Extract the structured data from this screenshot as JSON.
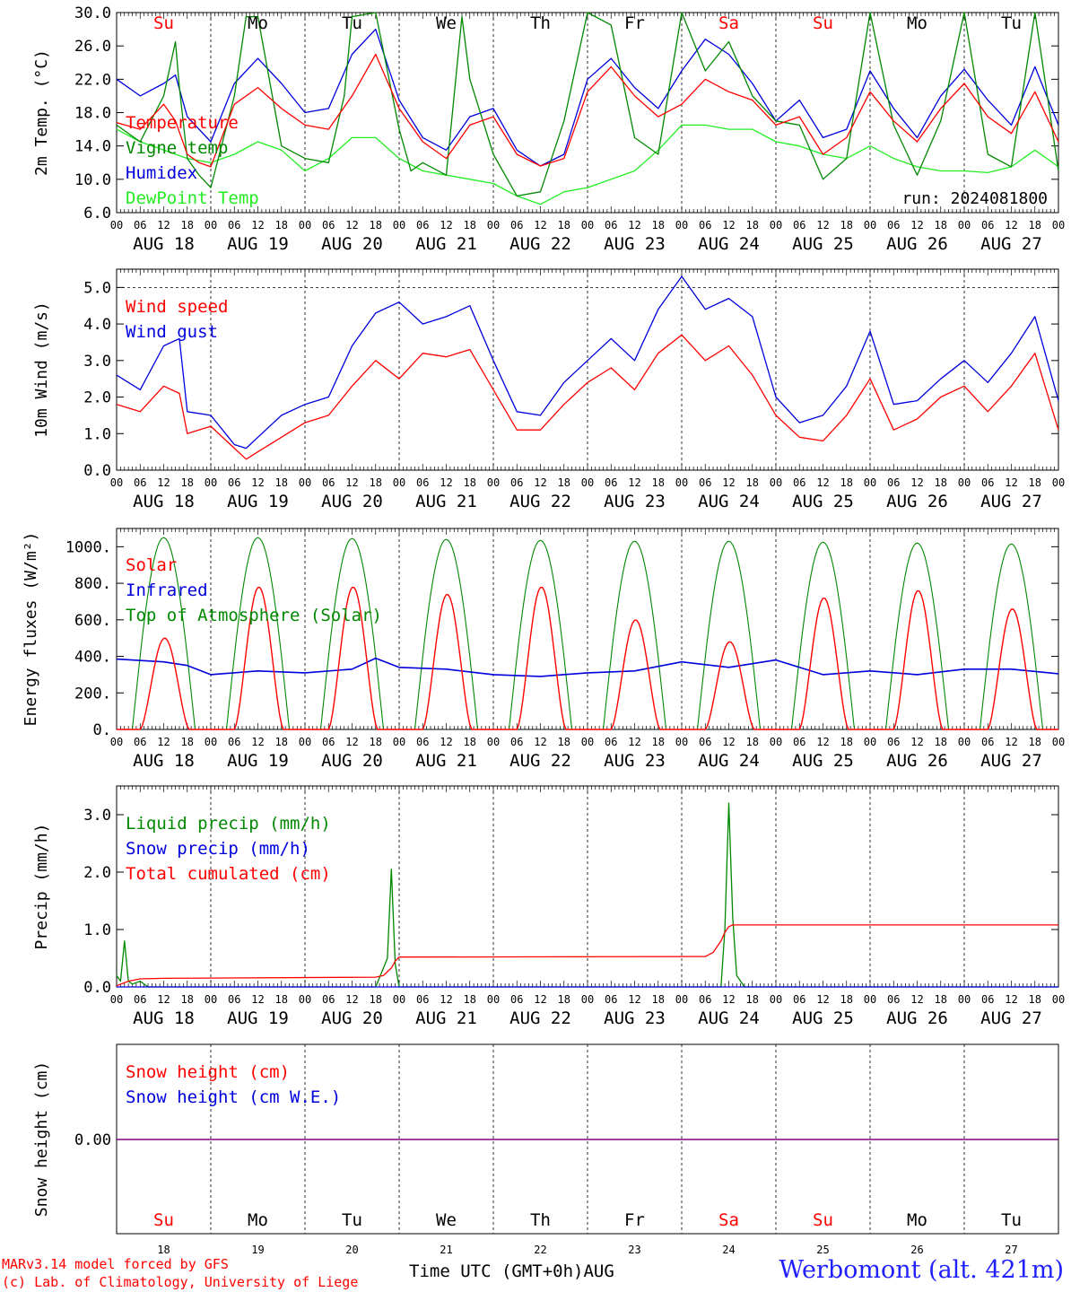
{
  "chart_data": [
    {
      "type": "line",
      "ylabel": "2m Temp. (°C)",
      "ylim": [
        6,
        30
      ],
      "yticks": [
        6,
        10,
        14,
        18,
        22,
        26,
        30
      ],
      "ytick_labels": [
        "6.0",
        "10.0",
        "14.0",
        "18.0",
        "22.0",
        "26.0",
        "30.0"
      ],
      "weekday_labels": [
        "Su",
        "Mo",
        "Tu",
        "We",
        "Th",
        "Fr",
        "Sa",
        "Su",
        "Mo",
        "Tu"
      ],
      "annotation": "run: 2024081800",
      "legend": "top-left",
      "series": [
        {
          "name": "Temperature",
          "color": "#ff0000",
          "x": [
            0,
            6,
            12,
            15,
            18,
            21,
            24,
            30,
            36,
            42,
            48,
            54,
            60,
            66,
            72,
            78,
            84,
            90,
            96,
            102,
            108,
            114,
            120,
            126,
            132,
            138,
            144,
            150,
            156,
            162,
            168,
            174,
            180,
            186,
            192,
            198,
            204,
            210,
            216,
            222,
            228,
            234,
            240
          ],
          "values": [
            16.8,
            16.0,
            19.0,
            17.0,
            13.0,
            12.0,
            11.5,
            19.0,
            21.0,
            18.5,
            16.5,
            16.0,
            20.0,
            25.0,
            18.5,
            14.5,
            12.5,
            16.5,
            17.5,
            13.0,
            11.6,
            12.5,
            20.5,
            23.5,
            20.0,
            17.5,
            19.0,
            22.0,
            20.5,
            19.5,
            16.5,
            17.5,
            13.0,
            15.0,
            20.5,
            17.0,
            14.5,
            18.5,
            21.5,
            17.5,
            15.5,
            20.5,
            14.5
          ]
        },
        {
          "name": "Vigne temp",
          "color": "#008800",
          "x": [
            0,
            6,
            12,
            15,
            16,
            18,
            21,
            24,
            30,
            33,
            36,
            42,
            48,
            54,
            58,
            60,
            66,
            72,
            75,
            78,
            84,
            88,
            90,
            96,
            102,
            108,
            114,
            120,
            126,
            132,
            138,
            144,
            150,
            156,
            162,
            168,
            174,
            180,
            186,
            192,
            198,
            204,
            210,
            216,
            222,
            228,
            234,
            240
          ],
          "values": [
            16.5,
            14.5,
            20.0,
            26.5,
            21.0,
            12.5,
            10.5,
            9.0,
            20.0,
            29.5,
            29.5,
            14.0,
            12.5,
            12.0,
            20.0,
            29.5,
            30.0,
            16.0,
            11.0,
            12.0,
            10.5,
            29.5,
            22.0,
            13.0,
            8.0,
            8.5,
            17.0,
            30.0,
            28.5,
            15.0,
            13.0,
            30.0,
            23.0,
            26.5,
            20.0,
            17.0,
            16.5,
            10.0,
            12.5,
            30.0,
            16.5,
            10.5,
            17.0,
            30.0,
            13.0,
            11.5,
            30.0,
            11.0
          ]
        },
        {
          "name": "Humidex",
          "color": "#0000dd",
          "x": [
            0,
            6,
            12,
            15,
            18,
            21,
            24,
            30,
            36,
            42,
            48,
            54,
            60,
            66,
            72,
            78,
            84,
            90,
            96,
            102,
            108,
            114,
            120,
            126,
            132,
            138,
            144,
            150,
            156,
            162,
            168,
            174,
            180,
            186,
            192,
            198,
            204,
            210,
            216,
            222,
            228,
            234,
            240
          ],
          "values": [
            22.0,
            20.0,
            21.5,
            22.5,
            17.5,
            16.0,
            14.5,
            21.5,
            24.5,
            21.5,
            18.0,
            18.5,
            25.0,
            28.0,
            19.5,
            15.0,
            13.5,
            17.5,
            18.5,
            13.5,
            11.6,
            13.0,
            22.0,
            24.5,
            21.0,
            18.5,
            23.0,
            26.8,
            25.0,
            21.5,
            17.0,
            19.5,
            15.0,
            16.0,
            23.0,
            18.5,
            15.0,
            20.0,
            23.2,
            19.5,
            16.5,
            23.5,
            16.5
          ]
        },
        {
          "name": "DewPoint Temp",
          "color": "#22ee22",
          "x": [
            0,
            6,
            12,
            18,
            24,
            30,
            36,
            42,
            48,
            54,
            60,
            66,
            72,
            78,
            84,
            90,
            96,
            102,
            108,
            114,
            120,
            126,
            132,
            138,
            144,
            150,
            156,
            162,
            168,
            174,
            180,
            186,
            192,
            198,
            204,
            210,
            216,
            222,
            228,
            234,
            240
          ],
          "values": [
            16.0,
            14.5,
            13.5,
            12.5,
            12.0,
            13.0,
            14.5,
            13.5,
            11.0,
            12.5,
            15.0,
            15.0,
            12.5,
            11.0,
            10.5,
            10.0,
            9.5,
            8.0,
            7.0,
            8.5,
            9.0,
            10.0,
            11.0,
            13.5,
            16.5,
            16.5,
            16.0,
            16.0,
            14.5,
            14.0,
            13.0,
            12.5,
            14.0,
            12.5,
            11.5,
            11.0,
            11.0,
            10.8,
            11.5,
            13.5,
            11.5
          ]
        }
      ]
    },
    {
      "type": "line",
      "ylabel": "10m Wind (m/s)",
      "ylim": [
        0,
        5.5
      ],
      "yticks": [
        0,
        1,
        2,
        3,
        4,
        5
      ],
      "ytick_labels": [
        "0.0",
        "1.0",
        "2.0",
        "3.0",
        "4.0",
        "5.0"
      ],
      "legend": "top-left",
      "series": [
        {
          "name": "Wind speed",
          "color": "#ff0000",
          "x": [
            0,
            6,
            12,
            16,
            18,
            24,
            30,
            33,
            36,
            42,
            48,
            54,
            60,
            66,
            72,
            78,
            84,
            90,
            96,
            102,
            108,
            114,
            120,
            126,
            132,
            138,
            144,
            150,
            156,
            162,
            168,
            174,
            180,
            186,
            192,
            198,
            204,
            210,
            216,
            222,
            228,
            234,
            240
          ],
          "values": [
            1.8,
            1.6,
            2.3,
            2.1,
            1.0,
            1.2,
            0.6,
            0.3,
            0.5,
            0.9,
            1.3,
            1.5,
            2.3,
            3.0,
            2.5,
            3.2,
            3.1,
            3.3,
            2.2,
            1.1,
            1.1,
            1.8,
            2.4,
            2.8,
            2.2,
            3.2,
            3.7,
            3.0,
            3.4,
            2.6,
            1.5,
            0.9,
            0.8,
            1.5,
            2.5,
            1.1,
            1.4,
            2.0,
            2.3,
            1.6,
            2.3,
            3.2,
            1.1
          ]
        },
        {
          "name": "Wind gust",
          "color": "#0000dd",
          "x": [
            0,
            6,
            12,
            16,
            18,
            24,
            30,
            33,
            36,
            42,
            48,
            54,
            60,
            66,
            72,
            78,
            84,
            90,
            96,
            102,
            108,
            114,
            120,
            126,
            132,
            138,
            144,
            150,
            156,
            162,
            168,
            174,
            180,
            186,
            192,
            198,
            204,
            210,
            216,
            222,
            228,
            234,
            240
          ],
          "values": [
            2.6,
            2.2,
            3.4,
            3.6,
            1.6,
            1.5,
            0.7,
            0.6,
            0.9,
            1.5,
            1.8,
            2.0,
            3.4,
            4.3,
            4.6,
            4.0,
            4.2,
            4.5,
            3.0,
            1.6,
            1.5,
            2.4,
            3.0,
            3.6,
            3.0,
            4.4,
            5.3,
            4.4,
            4.7,
            4.2,
            2.0,
            1.3,
            1.5,
            2.3,
            3.8,
            1.8,
            1.9,
            2.5,
            3.0,
            2.4,
            3.2,
            4.2,
            1.9
          ]
        }
      ]
    },
    {
      "type": "line",
      "ylabel": "Energy fluxes (W/m²)",
      "ylim": [
        0,
        1100
      ],
      "yticks": [
        0,
        200,
        400,
        600,
        800,
        1000
      ],
      "ytick_labels": [
        "0.",
        "200.",
        "400.",
        "600.",
        "800.",
        "1000."
      ],
      "legend": "top-left",
      "daily_peaks_toa": [
        1050,
        1050,
        1045,
        1040,
        1035,
        1030,
        1030,
        1025,
        1020,
        1015
      ],
      "daily_peaks_solar": [
        500,
        780,
        780,
        740,
        780,
        600,
        480,
        720,
        760,
        660
      ],
      "series": [
        {
          "name": "Solar",
          "color": "#ff0000"
        },
        {
          "name": "Infrared",
          "color": "#0000dd",
          "x": [
            0,
            12,
            18,
            24,
            36,
            48,
            60,
            66,
            72,
            84,
            96,
            108,
            120,
            132,
            144,
            156,
            168,
            180,
            192,
            204,
            216,
            228,
            240
          ],
          "values": [
            385,
            370,
            350,
            300,
            320,
            310,
            330,
            390,
            340,
            330,
            300,
            290,
            310,
            320,
            370,
            340,
            380,
            300,
            320,
            300,
            330,
            330,
            305
          ]
        },
        {
          "name": "Top of Atmosphere (Solar)",
          "color": "#008800"
        }
      ]
    },
    {
      "type": "line",
      "ylabel": "Precip (mm/h)",
      "ylim": [
        0,
        3.5
      ],
      "yticks": [
        0,
        1,
        2,
        3
      ],
      "ytick_labels": [
        "0.0",
        "1.0",
        "2.0",
        "3.0"
      ],
      "legend": "top-left",
      "series": [
        {
          "name": "Liquid precip (mm/h)",
          "color": "#008800",
          "x": [
            0,
            1,
            2,
            3,
            4,
            6,
            8,
            10,
            60,
            66,
            69,
            70,
            71,
            72,
            73,
            140,
            154,
            155,
            156,
            157,
            158,
            160,
            240
          ],
          "values": [
            0.2,
            0.1,
            0.8,
            0.1,
            0.05,
            0.1,
            0.0,
            0.0,
            0.0,
            0.0,
            0.5,
            2.05,
            0.4,
            0.0,
            0.0,
            0.0,
            0.0,
            1.0,
            3.2,
            1.2,
            0.2,
            0.0,
            0.0
          ]
        },
        {
          "name": "Snow precip (mm/h)",
          "color": "#0000dd",
          "x": [
            0,
            240
          ],
          "values": [
            0,
            0
          ]
        },
        {
          "name": "Total cumulated (cm)",
          "color": "#ff0000",
          "x": [
            0,
            3,
            6,
            12,
            66,
            68,
            70,
            71,
            72,
            150,
            152,
            154,
            155,
            156,
            157,
            240
          ],
          "values": [
            0.02,
            0.1,
            0.14,
            0.15,
            0.17,
            0.2,
            0.33,
            0.45,
            0.52,
            0.53,
            0.6,
            0.8,
            0.95,
            1.05,
            1.08,
            1.08
          ]
        }
      ]
    },
    {
      "type": "line",
      "ylabel": "Snow height (cm)",
      "yticks": [
        0
      ],
      "ytick_labels": [
        "0.00"
      ],
      "legend": "top-left",
      "weekday_labels": [
        "Su",
        "Mo",
        "Tu",
        "We",
        "Th",
        "Fr",
        "Sa",
        "Su",
        "Mo",
        "Tu"
      ],
      "day_numbers": [
        "18",
        "19",
        "20",
        "21",
        "22",
        "23",
        "24",
        "25",
        "26",
        "27"
      ],
      "series": [
        {
          "name": "Snow height (cm)",
          "color": "#ff0000",
          "x": [
            0,
            240
          ],
          "values": [
            0,
            0
          ]
        },
        {
          "name": "Snow height (cm W.E.)",
          "color": "#0000dd",
          "x": [
            0,
            240
          ],
          "values": [
            0,
            0
          ]
        }
      ]
    }
  ],
  "x_axis": {
    "hour_labels": [
      "00",
      "06",
      "12",
      "18"
    ],
    "last_hour_label": "00",
    "date_labels": [
      "AUG 18",
      "AUG 19",
      "AUG 20",
      "AUG 21",
      "AUG 22",
      "AUG 23",
      "AUG 24",
      "AUG 25",
      "AUG 26",
      "AUG 27"
    ],
    "weekend_color": "#ff0000"
  },
  "footer": {
    "credit_line1": "MARv3.14 model forced by GFS",
    "credit_line2": "(c) Lab. of Climatology, University of Liege",
    "x_title": "Time UTC (GMT+0h)AUG",
    "station": "Werbomont (alt. 421m)"
  }
}
